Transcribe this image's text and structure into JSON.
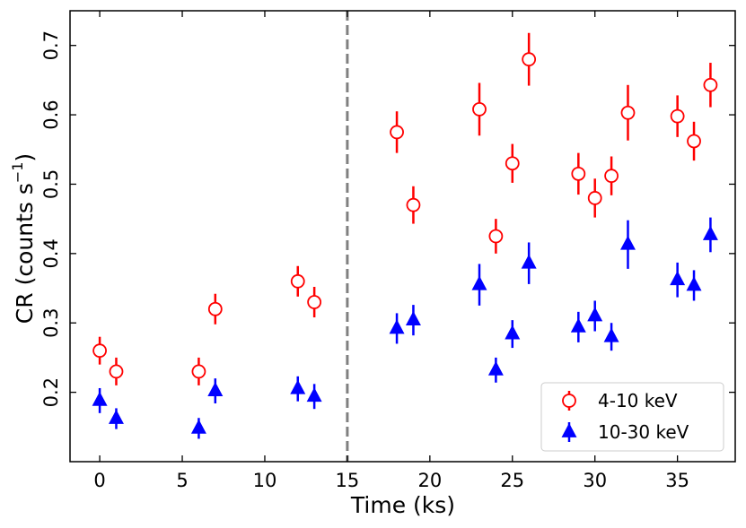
{
  "chart_data": {
    "type": "scatter",
    "xlabel": "Time (ks)",
    "ylabel_prefix": "CR (counts s",
    "ylabel_exponent": "−1",
    "ylabel_suffix": ")",
    "xlim": [
      -1.8,
      38.5
    ],
    "ylim": [
      0.1,
      0.75
    ],
    "x_ticks": [
      0,
      5,
      10,
      15,
      20,
      25,
      30,
      35
    ],
    "x_tick_labels": [
      "0",
      "5",
      "10",
      "15",
      "20",
      "25",
      "30",
      "35"
    ],
    "y_ticks": [
      0.2,
      0.3,
      0.4,
      0.5,
      0.6,
      0.7
    ],
    "y_tick_labels": [
      "0.2",
      "0.3",
      "0.4",
      "0.5",
      "0.6",
      "0.7"
    ],
    "vline": {
      "x": 15,
      "color": "#808080",
      "style": "dashed"
    },
    "legend_position": "bottom-right",
    "series": [
      {
        "name": "4-10 keV",
        "marker": "open-circle",
        "color": "#ff0000",
        "points": [
          {
            "x": 0,
            "y": 0.26,
            "err": 0.02
          },
          {
            "x": 1,
            "y": 0.23,
            "err": 0.02
          },
          {
            "x": 6,
            "y": 0.23,
            "err": 0.02
          },
          {
            "x": 7,
            "y": 0.32,
            "err": 0.022
          },
          {
            "x": 12,
            "y": 0.36,
            "err": 0.022
          },
          {
            "x": 13,
            "y": 0.33,
            "err": 0.022
          },
          {
            "x": 18,
            "y": 0.575,
            "err": 0.03
          },
          {
            "x": 19,
            "y": 0.47,
            "err": 0.027
          },
          {
            "x": 23,
            "y": 0.608,
            "err": 0.038
          },
          {
            "x": 24,
            "y": 0.425,
            "err": 0.025
          },
          {
            "x": 25,
            "y": 0.53,
            "err": 0.028
          },
          {
            "x": 26,
            "y": 0.68,
            "err": 0.038
          },
          {
            "x": 29,
            "y": 0.515,
            "err": 0.03
          },
          {
            "x": 30,
            "y": 0.48,
            "err": 0.028
          },
          {
            "x": 31,
            "y": 0.512,
            "err": 0.028
          },
          {
            "x": 32,
            "y": 0.603,
            "err": 0.04
          },
          {
            "x": 35,
            "y": 0.598,
            "err": 0.03
          },
          {
            "x": 36,
            "y": 0.562,
            "err": 0.028
          },
          {
            "x": 37,
            "y": 0.643,
            "err": 0.032
          }
        ]
      },
      {
        "name": "10-30 keV",
        "marker": "filled-triangle",
        "color": "#0000ff",
        "points": [
          {
            "x": 0,
            "y": 0.188,
            "err": 0.018
          },
          {
            "x": 1,
            "y": 0.162,
            "err": 0.015
          },
          {
            "x": 6,
            "y": 0.148,
            "err": 0.015
          },
          {
            "x": 7,
            "y": 0.202,
            "err": 0.018
          },
          {
            "x": 12,
            "y": 0.205,
            "err": 0.018
          },
          {
            "x": 13,
            "y": 0.194,
            "err": 0.018
          },
          {
            "x": 18,
            "y": 0.292,
            "err": 0.022
          },
          {
            "x": 19,
            "y": 0.304,
            "err": 0.022
          },
          {
            "x": 23,
            "y": 0.355,
            "err": 0.03
          },
          {
            "x": 24,
            "y": 0.232,
            "err": 0.018
          },
          {
            "x": 25,
            "y": 0.284,
            "err": 0.02
          },
          {
            "x": 26,
            "y": 0.386,
            "err": 0.03
          },
          {
            "x": 29,
            "y": 0.294,
            "err": 0.022
          },
          {
            "x": 30,
            "y": 0.31,
            "err": 0.022
          },
          {
            "x": 31,
            "y": 0.28,
            "err": 0.02
          },
          {
            "x": 32,
            "y": 0.413,
            "err": 0.035
          },
          {
            "x": 35,
            "y": 0.362,
            "err": 0.025
          },
          {
            "x": 36,
            "y": 0.354,
            "err": 0.022
          },
          {
            "x": 37,
            "y": 0.427,
            "err": 0.025
          }
        ]
      }
    ]
  }
}
